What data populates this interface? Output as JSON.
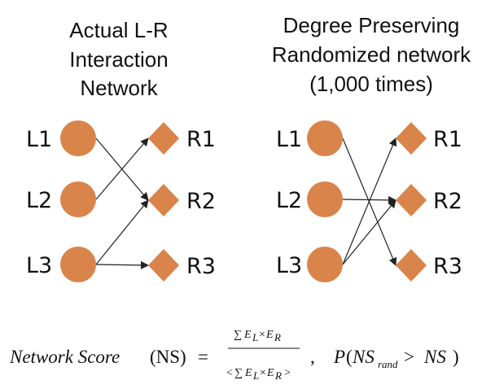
{
  "panels": [
    {
      "title_lines": [
        "Actual L-R",
        "Interaction",
        "Network"
      ],
      "ligands": [
        "L1",
        "L2",
        "L3"
      ],
      "receptors": [
        "R1",
        "R2",
        "R3"
      ],
      "edges": [
        {
          "from": "L1",
          "to": "R2"
        },
        {
          "from": "L2",
          "to": "R1"
        },
        {
          "from": "L3",
          "to": "R2"
        },
        {
          "from": "L3",
          "to": "R3"
        }
      ]
    },
    {
      "title_lines": [
        "Degree Preserving",
        "Randomized network",
        "(1,000 times)"
      ],
      "ligands": [
        "L1",
        "L2",
        "L3"
      ],
      "receptors": [
        "R1",
        "R2",
        "R3"
      ],
      "edges": [
        {
          "from": "L1",
          "to": "R3"
        },
        {
          "from": "L2",
          "to": "R2"
        },
        {
          "from": "L3",
          "to": "R1"
        },
        {
          "from": "L3",
          "to": "R2"
        }
      ]
    }
  ],
  "colors": {
    "node_fill": "#d9844b",
    "edge": "#222222",
    "text": "#111111"
  },
  "formula": {
    "lhs_text": "Network Score",
    "lhs_paren": "(NS)",
    "equals": "=",
    "numerator_sum": "∑",
    "numerator_E1": "E",
    "numerator_L": "L",
    "numerator_times": "×",
    "numerator_E2": "E",
    "numerator_R": "R",
    "denominator_open": "<",
    "denominator_sum": "∑",
    "denominator_E1": "E",
    "denominator_L": "L",
    "denominator_times": "×",
    "denominator_E2": "E",
    "denominator_R": "R",
    "denominator_close": ">",
    "comma": ",",
    "p_open": "P",
    "p_paren_open": "(",
    "p_ns": "NS",
    "p_rand": "rand",
    "p_gt": ">",
    "p_ns2": "NS",
    "p_paren_close": ")"
  }
}
